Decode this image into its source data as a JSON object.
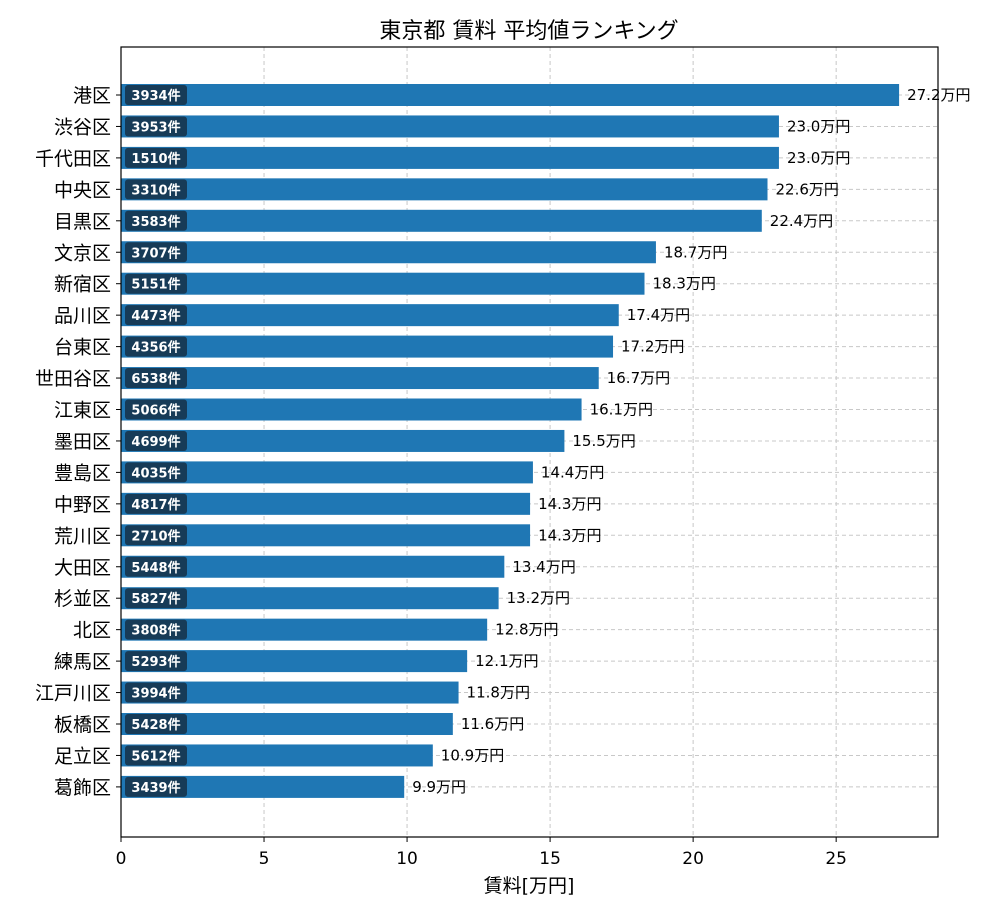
{
  "chart_data": {
    "type": "bar",
    "orientation": "horizontal",
    "title": "東京都 賃料 平均値ランキング",
    "xlabel": "賃料[万円]",
    "ylabel": "",
    "xlim": [
      0,
      28.56
    ],
    "xticks": [
      "0",
      "5",
      "10",
      "15",
      "20",
      "25"
    ],
    "grid": true,
    "bar_color": "#1f77b4",
    "badge_color": "#173b57",
    "value_suffix": "万円",
    "count_suffix": "件",
    "categories": [
      "港区",
      "渋谷区",
      "千代田区",
      "中央区",
      "目黒区",
      "文京区",
      "新宿区",
      "品川区",
      "台東区",
      "世田谷区",
      "江東区",
      "墨田区",
      "豊島区",
      "中野区",
      "荒川区",
      "大田区",
      "杉並区",
      "北区",
      "練馬区",
      "江戸川区",
      "板橋区",
      "足立区",
      "葛飾区"
    ],
    "values": [
      27.2,
      23.0,
      23.0,
      22.6,
      22.4,
      18.7,
      18.3,
      17.4,
      17.2,
      16.7,
      16.1,
      15.5,
      14.4,
      14.3,
      14.3,
      13.4,
      13.2,
      12.8,
      12.1,
      11.8,
      11.6,
      10.9,
      9.9
    ],
    "value_labels": [
      "27.2万円",
      "23.0万円",
      "23.0万円",
      "22.6万円",
      "22.4万円",
      "18.7万円",
      "18.3万円",
      "17.4万円",
      "17.2万円",
      "16.7万円",
      "16.1万円",
      "15.5万円",
      "14.4万円",
      "14.3万円",
      "14.3万円",
      "13.4万円",
      "13.2万円",
      "12.8万円",
      "12.1万円",
      "11.8万円",
      "11.6万円",
      "10.9万円",
      "9.9万円"
    ],
    "counts": [
      "3934件",
      "3953件",
      "1510件",
      "3310件",
      "3583件",
      "3707件",
      "5151件",
      "4473件",
      "4356件",
      "6538件",
      "5066件",
      "4699件",
      "4035件",
      "4817件",
      "2710件",
      "5448件",
      "5827件",
      "3808件",
      "5293件",
      "3994件",
      "5428件",
      "5612件",
      "3439件"
    ]
  }
}
